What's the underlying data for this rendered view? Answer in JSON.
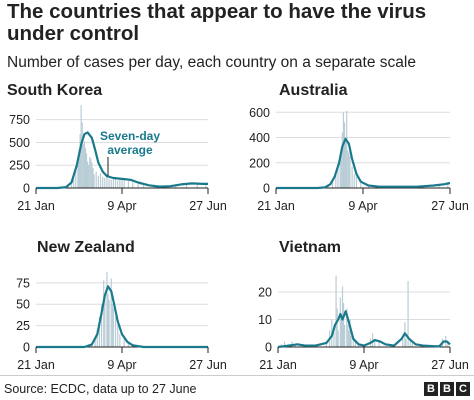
{
  "title": "The countries that appear to have the virus under control",
  "subtitle": "Number of cases per day, each country on a separate scale",
  "source": "Source: ECDC, data up to 27 June",
  "logo": [
    "B",
    "B",
    "C"
  ],
  "colors": {
    "line": "#1a7a8c",
    "bars": "#b9cdd6",
    "axis": "#222222",
    "grid": "#dddddd",
    "annotation": "#1a7a8c"
  },
  "chart_data": [
    {
      "type": "line",
      "title": "South Korea",
      "x_ticks": [
        "21 Jan",
        "9 Apr",
        "27 Jun"
      ],
      "x_range": [
        "21 Jan",
        "27 Jun"
      ],
      "ylim": [
        0,
        900
      ],
      "y_ticks": [
        0,
        250,
        500,
        750
      ],
      "annotation": "Seven-day average",
      "series": [
        {
          "values": [
            [
              0,
              0
            ],
            [
              20,
              0
            ],
            [
              28,
              10
            ],
            [
              33,
              60
            ],
            [
              38,
              250
            ],
            [
              42,
              480
            ],
            [
              45,
              590
            ],
            [
              48,
              610
            ],
            [
              52,
              550
            ],
            [
              55,
              420
            ],
            [
              58,
              280
            ],
            [
              62,
              180
            ],
            [
              66,
              130
            ],
            [
              72,
              110
            ],
            [
              80,
              100
            ],
            [
              88,
              90
            ],
            [
              95,
              60
            ],
            [
              105,
              30
            ],
            [
              115,
              15
            ],
            [
              125,
              20
            ],
            [
              135,
              40
            ],
            [
              145,
              50
            ],
            [
              155,
              45
            ],
            [
              160,
              45
            ]
          ]
        }
      ],
      "bars": [
        [
          30,
          20
        ],
        [
          33,
          70
        ],
        [
          35,
          140
        ],
        [
          37,
          240
        ],
        [
          39,
          330
        ],
        [
          40,
          420
        ],
        [
          41,
          590
        ],
        [
          42,
          910
        ],
        [
          43,
          720
        ],
        [
          44,
          480
        ],
        [
          45,
          510
        ],
        [
          46,
          440
        ],
        [
          47,
          380
        ],
        [
          48,
          290
        ],
        [
          49,
          250
        ],
        [
          50,
          340
        ],
        [
          51,
          320
        ],
        [
          52,
          280
        ],
        [
          53,
          220
        ],
        [
          54,
          150
        ],
        [
          56,
          180
        ],
        [
          58,
          130
        ],
        [
          60,
          160
        ],
        [
          62,
          120
        ],
        [
          64,
          110
        ],
        [
          66,
          140
        ],
        [
          68,
          100
        ],
        [
          70,
          90
        ],
        [
          72,
          110
        ],
        [
          74,
          100
        ],
        [
          76,
          80
        ],
        [
          78,
          110
        ],
        [
          80,
          90
        ],
        [
          82,
          100
        ],
        [
          86,
          80
        ],
        [
          90,
          60
        ],
        [
          95,
          45
        ],
        [
          100,
          30
        ],
        [
          110,
          20
        ],
        [
          120,
          25
        ],
        [
          130,
          40
        ],
        [
          140,
          50
        ],
        [
          150,
          50
        ],
        [
          158,
          45
        ]
      ]
    },
    {
      "type": "line",
      "title": "Australia",
      "x_ticks": [
        "21 Jan",
        "9 Apr",
        "27 Jun"
      ],
      "x_range": [
        "21 Jan",
        "27 Jun"
      ],
      "ylim": [
        0,
        650
      ],
      "y_ticks": [
        0,
        200,
        400,
        600
      ],
      "series": [
        {
          "values": [
            [
              0,
              0
            ],
            [
              38,
              0
            ],
            [
              45,
              5
            ],
            [
              50,
              30
            ],
            [
              54,
              90
            ],
            [
              58,
              200
            ],
            [
              61,
              330
            ],
            [
              64,
              390
            ],
            [
              67,
              350
            ],
            [
              70,
              230
            ],
            [
              74,
              110
            ],
            [
              78,
              50
            ],
            [
              85,
              20
            ],
            [
              95,
              10
            ],
            [
              115,
              10
            ],
            [
              130,
              10
            ],
            [
              145,
              20
            ],
            [
              155,
              30
            ],
            [
              160,
              40
            ]
          ]
        }
      ],
      "bars": [
        [
          48,
          20
        ],
        [
          52,
          60
        ],
        [
          55,
          110
        ],
        [
          57,
          180
        ],
        [
          59,
          250
        ],
        [
          60,
          290
        ],
        [
          61,
          440
        ],
        [
          62,
          600
        ],
        [
          63,
          520
        ],
        [
          64,
          380
        ],
        [
          65,
          610
        ],
        [
          66,
          300
        ],
        [
          67,
          280
        ],
        [
          68,
          250
        ],
        [
          70,
          170
        ],
        [
          72,
          110
        ],
        [
          74,
          90
        ],
        [
          78,
          40
        ],
        [
          85,
          20
        ],
        [
          100,
          10
        ],
        [
          130,
          10
        ],
        [
          150,
          20
        ],
        [
          158,
          40
        ]
      ]
    },
    {
      "type": "line",
      "title": "New Zealand",
      "x_ticks": [
        "21 Jan",
        "9 Apr",
        "27 Jun"
      ],
      "x_range": [
        "21 Jan",
        "27 Jun"
      ],
      "ylim": [
        0,
        90
      ],
      "y_ticks": [
        0,
        25,
        50,
        75
      ],
      "series": [
        {
          "values": [
            [
              0,
              0
            ],
            [
              45,
              0
            ],
            [
              52,
              3
            ],
            [
              57,
              15
            ],
            [
              61,
              40
            ],
            [
              64,
              60
            ],
            [
              67,
              71
            ],
            [
              70,
              65
            ],
            [
              73,
              48
            ],
            [
              76,
              30
            ],
            [
              80,
              15
            ],
            [
              85,
              6
            ],
            [
              90,
              2
            ],
            [
              100,
              0
            ],
            [
              130,
              0
            ],
            [
              160,
              0
            ]
          ]
        }
      ],
      "bars": [
        [
          52,
          5
        ],
        [
          55,
          10
        ],
        [
          57,
          20
        ],
        [
          59,
          35
        ],
        [
          61,
          50
        ],
        [
          63,
          78
        ],
        [
          64,
          60
        ],
        [
          66,
          88
        ],
        [
          67,
          62
        ],
        [
          68,
          55
        ],
        [
          70,
          80
        ],
        [
          71,
          50
        ],
        [
          72,
          45
        ],
        [
          74,
          35
        ],
        [
          76,
          25
        ],
        [
          78,
          15
        ],
        [
          82,
          10
        ],
        [
          86,
          5
        ],
        [
          90,
          2
        ]
      ]
    },
    {
      "type": "line",
      "title": "Vietnam",
      "x_ticks": [
        "21 Jan",
        "9 Apr",
        "27 Jun"
      ],
      "x_range": [
        "21 Jan",
        "27 Jun"
      ],
      "ylim": [
        0,
        28
      ],
      "y_ticks": [
        0,
        10,
        20
      ],
      "series": [
        {
          "values": [
            [
              0,
              0
            ],
            [
              10,
              0.5
            ],
            [
              18,
              1
            ],
            [
              25,
              0.5
            ],
            [
              35,
              0.5
            ],
            [
              45,
              1.5
            ],
            [
              50,
              4
            ],
            [
              53,
              8
            ],
            [
              56,
              10
            ],
            [
              58,
              12
            ],
            [
              60,
              10
            ],
            [
              63,
              13
            ],
            [
              66,
              9
            ],
            [
              70,
              3
            ],
            [
              75,
              1
            ],
            [
              80,
              0.5
            ],
            [
              86,
              1.5
            ],
            [
              90,
              2.5
            ],
            [
              95,
              2
            ],
            [
              100,
              1
            ],
            [
              108,
              0.5
            ],
            [
              115,
              3
            ],
            [
              118,
              5
            ],
            [
              122,
              3
            ],
            [
              128,
              1
            ],
            [
              135,
              0.5
            ],
            [
              145,
              0.3
            ],
            [
              150,
              0.2
            ],
            [
              154,
              2
            ],
            [
              157,
              2
            ],
            [
              160,
              1
            ]
          ]
        }
      ],
      "bars": [
        [
          3,
          1
        ],
        [
          6,
          2
        ],
        [
          10,
          1
        ],
        [
          13,
          2
        ],
        [
          16,
          1
        ],
        [
          20,
          1
        ],
        [
          45,
          2
        ],
        [
          48,
          6
        ],
        [
          50,
          10
        ],
        [
          52,
          8
        ],
        [
          54,
          26
        ],
        [
          55,
          14
        ],
        [
          56,
          6
        ],
        [
          58,
          18
        ],
        [
          59,
          12
        ],
        [
          60,
          22
        ],
        [
          61,
          16
        ],
        [
          62,
          8
        ],
        [
          64,
          14
        ],
        [
          65,
          8
        ],
        [
          66,
          6
        ],
        [
          67,
          10
        ],
        [
          68,
          4
        ],
        [
          70,
          3
        ],
        [
          72,
          2
        ],
        [
          75,
          1
        ],
        [
          86,
          3
        ],
        [
          88,
          5
        ],
        [
          90,
          3
        ],
        [
          94,
          2
        ],
        [
          116,
          3
        ],
        [
          118,
          9
        ],
        [
          119,
          3
        ],
        [
          121,
          24
        ],
        [
          123,
          3
        ],
        [
          125,
          2
        ],
        [
          153,
          3
        ],
        [
          156,
          4
        ],
        [
          158,
          2
        ]
      ]
    }
  ]
}
